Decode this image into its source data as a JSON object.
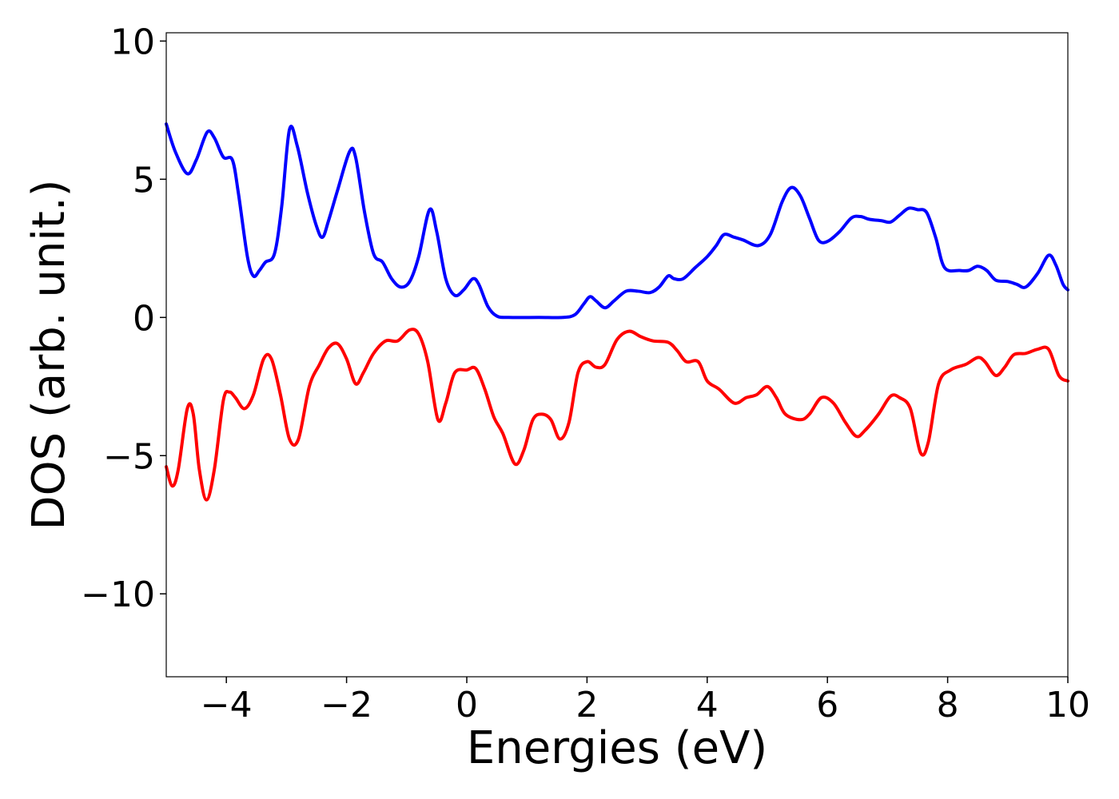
{
  "chart_data": {
    "type": "line",
    "title": "",
    "xlabel": "Energies (eV)",
    "ylabel": "DOS (arb. unit.)",
    "xlim": [
      -5,
      10
    ],
    "ylim": [
      -13,
      10.3
    ],
    "grid": false,
    "legend": "none",
    "x_ticks": [
      -4,
      -2,
      0,
      2,
      4,
      6,
      8,
      10
    ],
    "x_tick_labels": [
      "−4",
      "−2",
      "0",
      "2",
      "4",
      "6",
      "8",
      "10"
    ],
    "y_ticks": [
      -10,
      -5,
      0,
      5,
      10
    ],
    "y_tick_labels": [
      "−10",
      "−5",
      "0",
      "5",
      "10"
    ],
    "series": [
      {
        "color": "#0000ff",
        "points": [
          [
            -5.0,
            7.0
          ],
          [
            -4.85,
            6.0
          ],
          [
            -4.65,
            5.2
          ],
          [
            -4.5,
            5.7
          ],
          [
            -4.32,
            6.7
          ],
          [
            -4.2,
            6.5
          ],
          [
            -4.05,
            5.8
          ],
          [
            -3.9,
            5.7
          ],
          [
            -3.8,
            4.5
          ],
          [
            -3.65,
            2.2
          ],
          [
            -3.55,
            1.5
          ],
          [
            -3.45,
            1.7
          ],
          [
            -3.35,
            2.0
          ],
          [
            -3.2,
            2.3
          ],
          [
            -3.08,
            4.0
          ],
          [
            -2.95,
            6.8
          ],
          [
            -2.82,
            6.2
          ],
          [
            -2.65,
            4.5
          ],
          [
            -2.5,
            3.3
          ],
          [
            -2.4,
            2.9
          ],
          [
            -2.3,
            3.5
          ],
          [
            -2.15,
            4.6
          ],
          [
            -1.95,
            6.0
          ],
          [
            -1.85,
            5.8
          ],
          [
            -1.7,
            3.8
          ],
          [
            -1.55,
            2.3
          ],
          [
            -1.4,
            2.0
          ],
          [
            -1.25,
            1.4
          ],
          [
            -1.1,
            1.1
          ],
          [
            -0.95,
            1.3
          ],
          [
            -0.8,
            2.2
          ],
          [
            -0.62,
            3.9
          ],
          [
            -0.5,
            3.1
          ],
          [
            -0.35,
            1.4
          ],
          [
            -0.2,
            0.8
          ],
          [
            -0.05,
            1.0
          ],
          [
            0.1,
            1.4
          ],
          [
            0.2,
            1.2
          ],
          [
            0.35,
            0.4
          ],
          [
            0.5,
            0.05
          ],
          [
            0.7,
            0.0
          ],
          [
            1.2,
            0.0
          ],
          [
            1.6,
            0.0
          ],
          [
            1.8,
            0.1
          ],
          [
            1.95,
            0.5
          ],
          [
            2.05,
            0.75
          ],
          [
            2.15,
            0.6
          ],
          [
            2.3,
            0.35
          ],
          [
            2.45,
            0.6
          ],
          [
            2.65,
            0.95
          ],
          [
            2.85,
            0.95
          ],
          [
            3.05,
            0.9
          ],
          [
            3.2,
            1.1
          ],
          [
            3.35,
            1.5
          ],
          [
            3.45,
            1.4
          ],
          [
            3.6,
            1.4
          ],
          [
            3.8,
            1.8
          ],
          [
            4.0,
            2.2
          ],
          [
            4.15,
            2.6
          ],
          [
            4.28,
            3.0
          ],
          [
            4.45,
            2.9
          ],
          [
            4.6,
            2.8
          ],
          [
            4.85,
            2.6
          ],
          [
            5.05,
            3.0
          ],
          [
            5.25,
            4.2
          ],
          [
            5.4,
            4.7
          ],
          [
            5.55,
            4.4
          ],
          [
            5.7,
            3.6
          ],
          [
            5.85,
            2.8
          ],
          [
            6.0,
            2.75
          ],
          [
            6.2,
            3.1
          ],
          [
            6.4,
            3.6
          ],
          [
            6.55,
            3.65
          ],
          [
            6.7,
            3.55
          ],
          [
            6.9,
            3.5
          ],
          [
            7.05,
            3.45
          ],
          [
            7.2,
            3.7
          ],
          [
            7.35,
            3.95
          ],
          [
            7.5,
            3.9
          ],
          [
            7.65,
            3.8
          ],
          [
            7.8,
            2.9
          ],
          [
            7.95,
            1.8
          ],
          [
            8.2,
            1.7
          ],
          [
            8.35,
            1.7
          ],
          [
            8.5,
            1.85
          ],
          [
            8.65,
            1.7
          ],
          [
            8.8,
            1.35
          ],
          [
            9.0,
            1.3
          ],
          [
            9.15,
            1.2
          ],
          [
            9.3,
            1.1
          ],
          [
            9.5,
            1.6
          ],
          [
            9.68,
            2.25
          ],
          [
            9.8,
            1.9
          ],
          [
            9.92,
            1.2
          ],
          [
            10.0,
            1.0
          ]
        ]
      },
      {
        "color": "#ff0000",
        "points": [
          [
            -5.0,
            -5.4
          ],
          [
            -4.9,
            -6.1
          ],
          [
            -4.8,
            -5.5
          ],
          [
            -4.65,
            -3.3
          ],
          [
            -4.55,
            -3.5
          ],
          [
            -4.45,
            -5.5
          ],
          [
            -4.33,
            -6.6
          ],
          [
            -4.2,
            -5.5
          ],
          [
            -4.05,
            -3.0
          ],
          [
            -3.95,
            -2.7
          ],
          [
            -3.85,
            -2.9
          ],
          [
            -3.7,
            -3.3
          ],
          [
            -3.55,
            -2.8
          ],
          [
            -3.38,
            -1.5
          ],
          [
            -3.25,
            -1.5
          ],
          [
            -3.1,
            -2.8
          ],
          [
            -2.95,
            -4.4
          ],
          [
            -2.8,
            -4.4
          ],
          [
            -2.62,
            -2.5
          ],
          [
            -2.45,
            -1.7
          ],
          [
            -2.3,
            -1.1
          ],
          [
            -2.15,
            -0.95
          ],
          [
            -2.0,
            -1.5
          ],
          [
            -1.85,
            -2.4
          ],
          [
            -1.72,
            -2.0
          ],
          [
            -1.55,
            -1.3
          ],
          [
            -1.35,
            -0.85
          ],
          [
            -1.15,
            -0.85
          ],
          [
            -0.95,
            -0.45
          ],
          [
            -0.8,
            -0.6
          ],
          [
            -0.65,
            -1.6
          ],
          [
            -0.48,
            -3.7
          ],
          [
            -0.35,
            -3.1
          ],
          [
            -0.2,
            -2.0
          ],
          [
            0.0,
            -1.9
          ],
          [
            0.15,
            -1.85
          ],
          [
            0.3,
            -2.6
          ],
          [
            0.45,
            -3.6
          ],
          [
            0.6,
            -4.2
          ],
          [
            0.8,
            -5.3
          ],
          [
            0.95,
            -4.8
          ],
          [
            1.1,
            -3.7
          ],
          [
            1.25,
            -3.5
          ],
          [
            1.4,
            -3.7
          ],
          [
            1.55,
            -4.4
          ],
          [
            1.7,
            -3.8
          ],
          [
            1.85,
            -2.0
          ],
          [
            2.0,
            -1.6
          ],
          [
            2.15,
            -1.8
          ],
          [
            2.3,
            -1.7
          ],
          [
            2.5,
            -0.8
          ],
          [
            2.7,
            -0.5
          ],
          [
            2.9,
            -0.7
          ],
          [
            3.1,
            -0.85
          ],
          [
            3.35,
            -0.9
          ],
          [
            3.5,
            -1.2
          ],
          [
            3.65,
            -1.6
          ],
          [
            3.85,
            -1.6
          ],
          [
            4.0,
            -2.3
          ],
          [
            4.2,
            -2.6
          ],
          [
            4.45,
            -3.1
          ],
          [
            4.65,
            -2.9
          ],
          [
            4.82,
            -2.8
          ],
          [
            5.0,
            -2.5
          ],
          [
            5.15,
            -2.9
          ],
          [
            5.3,
            -3.5
          ],
          [
            5.55,
            -3.7
          ],
          [
            5.7,
            -3.5
          ],
          [
            5.9,
            -2.9
          ],
          [
            6.1,
            -3.1
          ],
          [
            6.3,
            -3.8
          ],
          [
            6.48,
            -4.3
          ],
          [
            6.62,
            -4.1
          ],
          [
            6.85,
            -3.5
          ],
          [
            7.05,
            -2.85
          ],
          [
            7.2,
            -2.9
          ],
          [
            7.38,
            -3.3
          ],
          [
            7.55,
            -4.9
          ],
          [
            7.68,
            -4.5
          ],
          [
            7.85,
            -2.4
          ],
          [
            8.05,
            -1.9
          ],
          [
            8.3,
            -1.7
          ],
          [
            8.5,
            -1.45
          ],
          [
            8.62,
            -1.6
          ],
          [
            8.8,
            -2.1
          ],
          [
            8.95,
            -1.8
          ],
          [
            9.1,
            -1.35
          ],
          [
            9.3,
            -1.3
          ],
          [
            9.5,
            -1.15
          ],
          [
            9.68,
            -1.15
          ],
          [
            9.85,
            -2.1
          ],
          [
            10.0,
            -2.3
          ]
        ]
      }
    ]
  }
}
